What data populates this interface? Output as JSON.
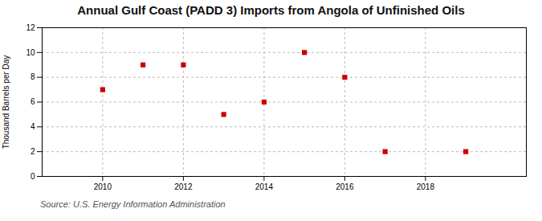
{
  "chart_data": {
    "type": "scatter",
    "title": "Annual Gulf Coast (PADD 3) Imports from Angola of Unfinished Oils",
    "ylabel": "Thousand Barrels per Day",
    "source": "Source: U.S. Energy Information Administration",
    "x": [
      2010,
      2011,
      2012,
      2013,
      2014,
      2015,
      2016,
      2017,
      2019
    ],
    "values": [
      7,
      9,
      9,
      5,
      6,
      10,
      8,
      2,
      2
    ],
    "color": "#cc0000",
    "marker": "square",
    "xlim": [
      2008.5,
      2020.5
    ],
    "xticks": [
      2010,
      2012,
      2014,
      2016,
      2018
    ],
    "ylim": [
      0,
      12
    ],
    "yticks": [
      0,
      2,
      4,
      6,
      8,
      10,
      12
    ],
    "grid": true
  }
}
